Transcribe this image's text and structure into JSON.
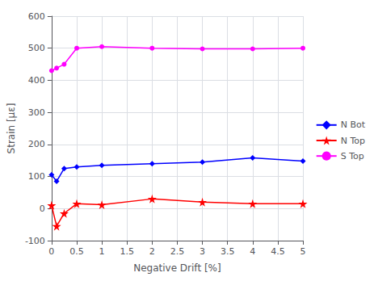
{
  "chart_data": {
    "type": "line",
    "xlabel": "Negative Drift [%]",
    "ylabel": "Strain [με]",
    "x": [
      0,
      0.1,
      0.25,
      0.5,
      1.0,
      2.0,
      3.0,
      4.0,
      5.0
    ],
    "series": [
      {
        "name": "N Bot",
        "color": "#0000ff",
        "marker": "diamond",
        "values": [
          105,
          85,
          125,
          130,
          135,
          140,
          145,
          158,
          148
        ]
      },
      {
        "name": "N Top",
        "color": "#ff0000",
        "marker": "star",
        "values": [
          10,
          -55,
          -15,
          15,
          12,
          30,
          20,
          15,
          15
        ]
      },
      {
        "name": "S Top",
        "color": "#ff00ff",
        "marker": "circle",
        "values": [
          430,
          438,
          450,
          500,
          505,
          500,
          498,
          498,
          500
        ]
      }
    ],
    "xlim": [
      0,
      5
    ],
    "ylim": [
      -100,
      600
    ],
    "xticks": [
      0,
      0.5,
      1,
      1.5,
      2,
      2.5,
      3,
      3.5,
      4,
      4.5,
      5
    ],
    "yticks": [
      -100,
      0,
      100,
      200,
      300,
      400,
      500,
      600
    ],
    "grid": true,
    "legend": "right"
  }
}
